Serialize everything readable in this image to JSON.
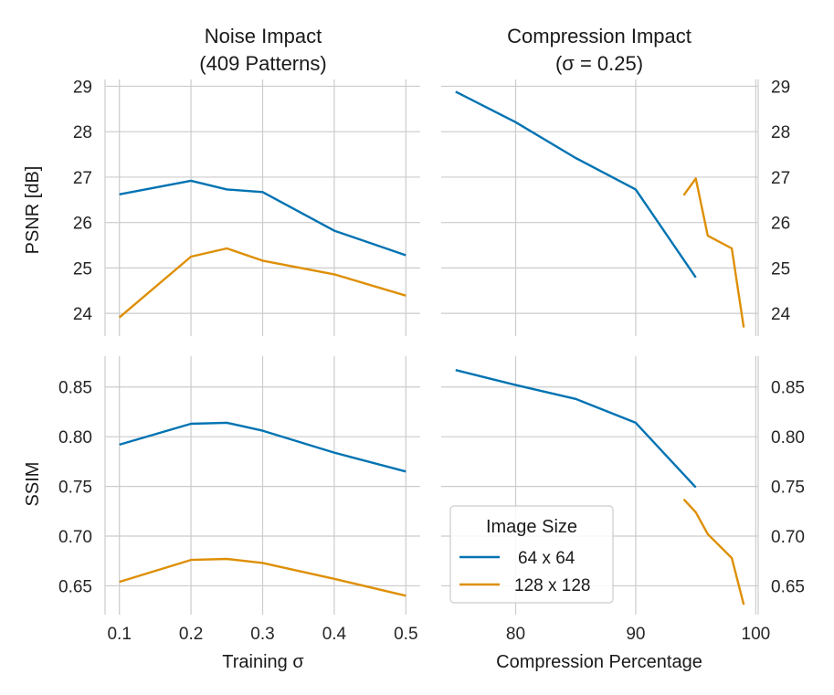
{
  "colors": {
    "s64": "#0173b2",
    "s128": "#de8f05"
  },
  "columns": [
    {
      "title_lines": [
        "Noise Impact",
        "(409 Patterns)"
      ],
      "xlabel": "Training σ"
    },
    {
      "title_lines": [
        "Compression Impact",
        "(σ = 0.25)"
      ],
      "xlabel": "Compression Percentage"
    }
  ],
  "legend": {
    "title": "Image Size",
    "placement": "lower-left of bottom-right panel",
    "entries": [
      "64 x 64",
      "128 x 128"
    ]
  },
  "chart_data": [
    {
      "type": "line",
      "panel": "top-left",
      "xlabel": "",
      "ylabel": "PSNR [dB]",
      "xlim": [
        0.08,
        0.52
      ],
      "ylim": [
        23.5,
        29.15
      ],
      "xticks": [
        "0.1",
        "0.2",
        "0.3",
        "0.4",
        "0.5"
      ],
      "yticks": [
        "24",
        "25",
        "26",
        "27",
        "28",
        "29"
      ],
      "series": [
        {
          "name": "64 x 64",
          "x": [
            0.1,
            0.2,
            0.25,
            0.3,
            0.4,
            0.5
          ],
          "y": [
            26.62,
            26.92,
            26.73,
            26.67,
            25.82,
            25.28
          ]
        },
        {
          "name": "128 x 128",
          "x": [
            0.1,
            0.2,
            0.25,
            0.3,
            0.4,
            0.5
          ],
          "y": [
            23.91,
            25.25,
            25.43,
            25.16,
            24.86,
            24.39
          ]
        }
      ]
    },
    {
      "type": "line",
      "panel": "top-right",
      "xlabel": "",
      "ylabel": "",
      "xlim": [
        73.8,
        100.2
      ],
      "ylim": [
        23.5,
        29.15
      ],
      "xticks": [
        "80",
        "90",
        "100"
      ],
      "yticks": [
        "24",
        "25",
        "26",
        "27",
        "28",
        "29"
      ],
      "series": [
        {
          "name": "64 x 64",
          "x": [
            75,
            80,
            85,
            90,
            95
          ],
          "y": [
            28.88,
            28.21,
            27.42,
            26.73,
            24.79
          ]
        },
        {
          "name": "128 x 128",
          "x": [
            94,
            95,
            96,
            98,
            99
          ],
          "y": [
            26.6,
            26.97,
            25.71,
            25.43,
            23.69
          ]
        }
      ]
    },
    {
      "type": "line",
      "panel": "bottom-left",
      "xlabel": "Training σ",
      "ylabel": "SSIM",
      "xlim": [
        0.08,
        0.52
      ],
      "ylim": [
        0.621,
        0.881
      ],
      "xticks": [
        "0.1",
        "0.2",
        "0.3",
        "0.4",
        "0.5"
      ],
      "yticks": [
        "0.65",
        "0.70",
        "0.75",
        "0.80",
        "0.85"
      ],
      "series": [
        {
          "name": "64 x 64",
          "x": [
            0.1,
            0.2,
            0.25,
            0.3,
            0.4,
            0.5
          ],
          "y": [
            0.792,
            0.813,
            0.814,
            0.806,
            0.784,
            0.765
          ]
        },
        {
          "name": "128 x 128",
          "x": [
            0.1,
            0.2,
            0.25,
            0.3,
            0.4,
            0.5
          ],
          "y": [
            0.654,
            0.676,
            0.677,
            0.673,
            0.657,
            0.64
          ]
        }
      ]
    },
    {
      "type": "line",
      "panel": "bottom-right",
      "xlabel": "Compression Percentage",
      "ylabel": "",
      "xlim": [
        73.8,
        100.2
      ],
      "ylim": [
        0.621,
        0.881
      ],
      "xticks": [
        "80",
        "90",
        "100"
      ],
      "yticks": [
        "0.65",
        "0.70",
        "0.75",
        "0.80",
        "0.85"
      ],
      "series": [
        {
          "name": "64 x 64",
          "x": [
            75,
            80,
            85,
            90,
            95
          ],
          "y": [
            0.867,
            0.852,
            0.838,
            0.814,
            0.749
          ]
        },
        {
          "name": "128 x 128",
          "x": [
            94,
            95,
            96,
            98,
            99
          ],
          "y": [
            0.737,
            0.724,
            0.702,
            0.678,
            0.631
          ]
        }
      ]
    }
  ]
}
